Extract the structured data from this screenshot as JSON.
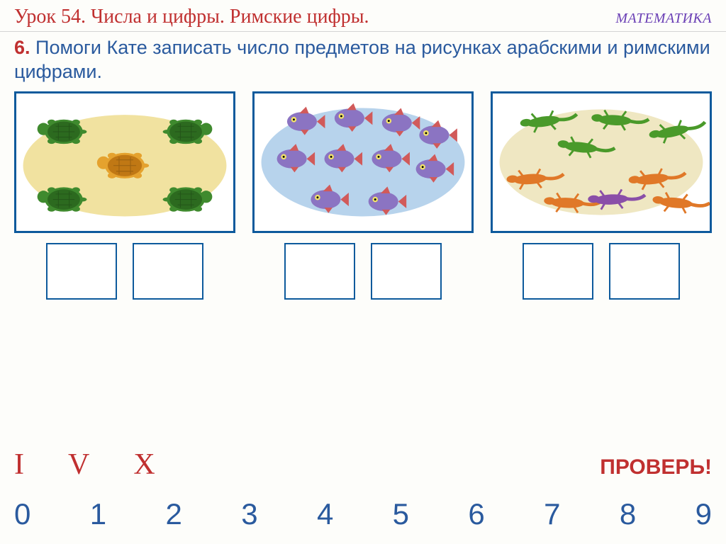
{
  "header": {
    "lesson_title": "Урок 54. Числа и цифры. Римские цифры.",
    "subject": "МАТЕМАТИКА"
  },
  "task": {
    "number": "6.",
    "text": "Помоги Кате записать число предметов на рисунках арабскими и римскими цифрами."
  },
  "cards": {
    "turtles": {
      "bg_ellipse_color": "#f1e2a0",
      "green_count": 4,
      "orange_count": 1,
      "green_color": "#3f8a2e",
      "green_shell_color": "#2c6a1f",
      "orange_color": "#e5a22e",
      "orange_shell_color": "#c07814"
    },
    "fish": {
      "bg_ellipse_color": "#b7d3ec",
      "count": 10,
      "body_color": "#8b74c2",
      "fin_color": "#d15a5a",
      "eye_color": "#f2e26a"
    },
    "lizards": {
      "bg_ellipse_color": "#efe7c2",
      "green_count": 4,
      "orange_count": 4,
      "purple_count": 1,
      "green_color": "#4a9a2a",
      "orange_color": "#e07828",
      "purple_color": "#8a4fa8"
    }
  },
  "roman": {
    "i": "I",
    "v": "V",
    "x": "X"
  },
  "check_label": "ПРОВЕРЬ!",
  "digits": [
    "0",
    "1",
    "2",
    "3",
    "4",
    "5",
    "6",
    "7",
    "8",
    "9"
  ],
  "colors": {
    "frame": "#0d5a9c",
    "heading": "#c03030",
    "task_text": "#2a5a9e",
    "subject": "#6a3fb5"
  }
}
